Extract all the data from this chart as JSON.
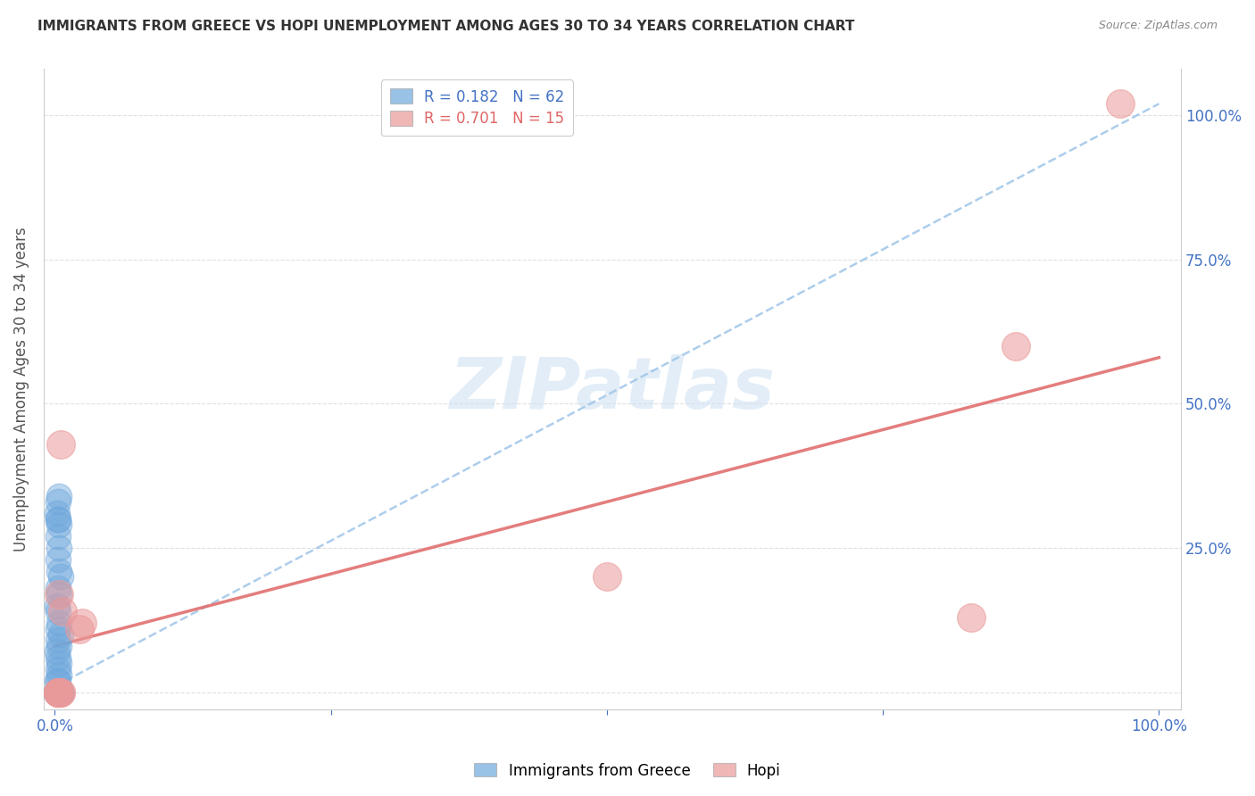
{
  "title": "IMMIGRANTS FROM GREECE VS HOPI UNEMPLOYMENT AMONG AGES 30 TO 34 YEARS CORRELATION CHART",
  "source": "Source: ZipAtlas.com",
  "ylabel": "Unemployment Among Ages 30 to 34 years",
  "xlim": [
    -0.01,
    1.02
  ],
  "ylim": [
    -0.03,
    1.08
  ],
  "blue_R": 0.182,
  "blue_N": 62,
  "pink_R": 0.701,
  "pink_N": 15,
  "blue_color": "#6fa8dc",
  "pink_color": "#ea9999",
  "blue_line_color": "#9fc5e8",
  "pink_line_color": "#e06666",
  "blue_text_color": "#4472c4",
  "pink_text_color": "#e06666",
  "title_color": "#333333",
  "source_color": "#888888",
  "ylabel_color": "#555555",
  "watermark_color": "#cfe2f3",
  "grid_color": "#dddddd",
  "blue_trend_x": [
    0.0,
    1.0
  ],
  "blue_trend_y": [
    0.01,
    1.02
  ],
  "pink_trend_x": [
    0.0,
    1.0
  ],
  "pink_trend_y": [
    0.08,
    0.58
  ],
  "pink_scatter_x": [
    0.003,
    0.005,
    0.007,
    0.004,
    0.022,
    0.025,
    0.005,
    0.5,
    0.83,
    0.87,
    0.003,
    0.005,
    0.003,
    0.965,
    0.003
  ],
  "pink_scatter_y": [
    0.0,
    0.0,
    0.14,
    0.17,
    0.11,
    0.12,
    0.43,
    0.2,
    0.13,
    0.6,
    0.0,
    0.0,
    0.0,
    1.02,
    0.0
  ],
  "blue_scatter_x": [
    0.001,
    0.002,
    0.001,
    0.003,
    0.002,
    0.002,
    0.003,
    0.004,
    0.002,
    0.003,
    0.003,
    0.004,
    0.002,
    0.003,
    0.002,
    0.003,
    0.004,
    0.003,
    0.002,
    0.004,
    0.003,
    0.005,
    0.003,
    0.004,
    0.003,
    0.002,
    0.004,
    0.003,
    0.005,
    0.004,
    0.003,
    0.002,
    0.004,
    0.003,
    0.003,
    0.002,
    0.003,
    0.004,
    0.003,
    0.004,
    0.003,
    0.002,
    0.004,
    0.003,
    0.005,
    0.003,
    0.004,
    0.003,
    0.002,
    0.004,
    0.003,
    0.005,
    0.004,
    0.003,
    0.004,
    0.003,
    0.004,
    0.003,
    0.002,
    0.003,
    0.004,
    0.003
  ],
  "blue_scatter_y": [
    0.0,
    0.0,
    0.0,
    0.0,
    0.0,
    0.0,
    0.0,
    0.0,
    0.0,
    0.0,
    0.0,
    0.0,
    0.0,
    0.0,
    0.0,
    0.0,
    0.0,
    0.0,
    0.0,
    0.0,
    0.0,
    0.0,
    0.0,
    0.0,
    0.0,
    0.0,
    0.0,
    0.0,
    0.0,
    0.0,
    0.0,
    0.0,
    0.0,
    0.0,
    0.0,
    0.02,
    0.02,
    0.03,
    0.04,
    0.05,
    0.06,
    0.07,
    0.08,
    0.09,
    0.1,
    0.11,
    0.12,
    0.14,
    0.15,
    0.17,
    0.18,
    0.2,
    0.21,
    0.23,
    0.25,
    0.27,
    0.29,
    0.3,
    0.31,
    0.33,
    0.34,
    0.3
  ]
}
